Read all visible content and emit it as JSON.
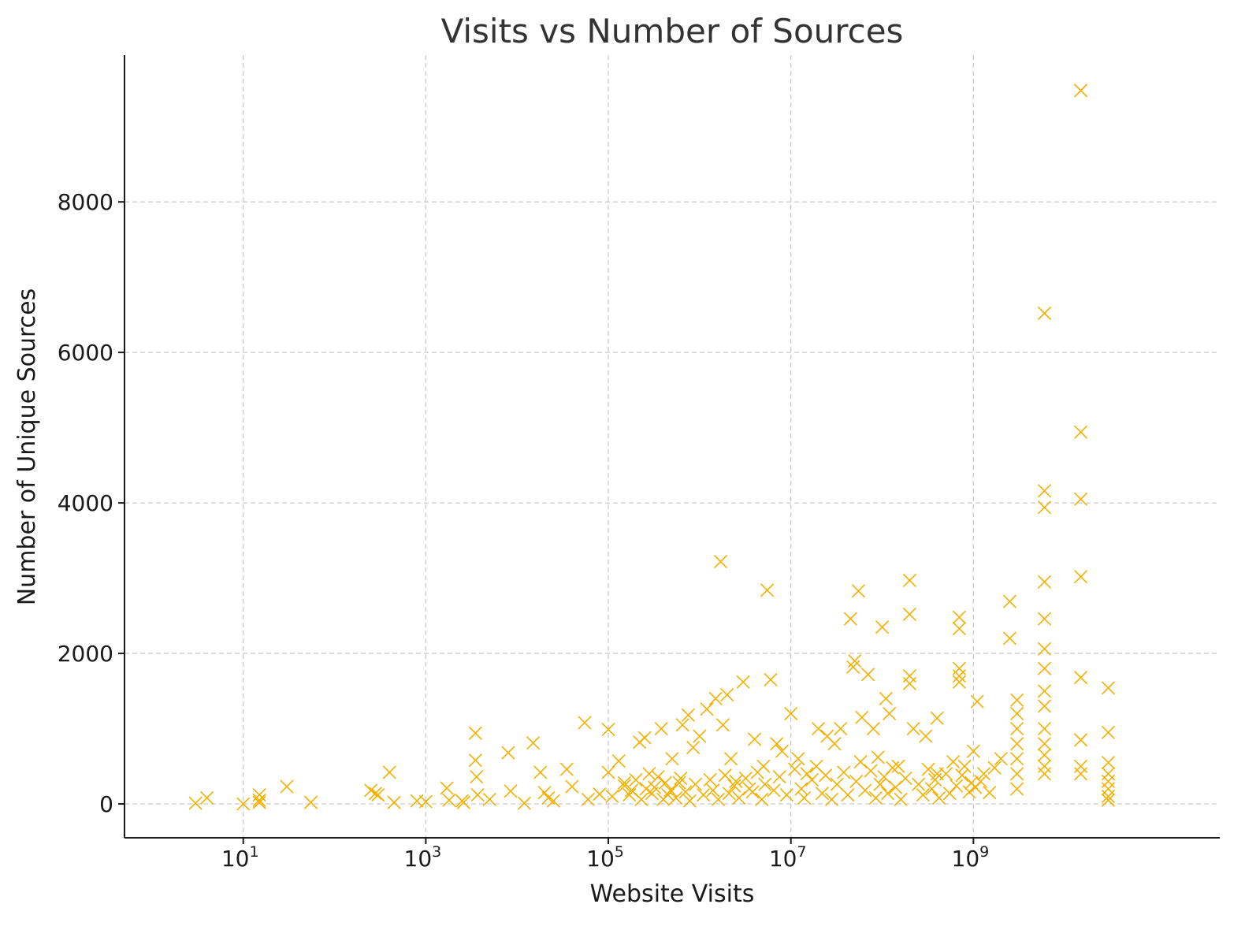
{
  "chart_data": {
    "type": "scatter",
    "title": "Visits vs Number of Sources",
    "xlabel": "Website Visits",
    "ylabel": "Number of Unique Sources",
    "x_scale": "log",
    "xlim": [
      0.5,
      500000000000
    ],
    "ylim": [
      -450,
      9950
    ],
    "x_ticks": [
      {
        "value": 10,
        "base": "10",
        "exp": "1"
      },
      {
        "value": 1000,
        "base": "10",
        "exp": "3"
      },
      {
        "value": 100000,
        "base": "10",
        "exp": "5"
      },
      {
        "value": 10000000,
        "base": "10",
        "exp": "7"
      },
      {
        "value": 1000000000,
        "base": "10",
        "exp": "9"
      }
    ],
    "y_ticks": [
      0,
      2000,
      4000,
      6000,
      8000
    ],
    "grid": true,
    "marker": "x",
    "color": "#f5b000",
    "points": [
      [
        3,
        10
      ],
      [
        4,
        80
      ],
      [
        10,
        0
      ],
      [
        15,
        50
      ],
      [
        15,
        120
      ],
      [
        15,
        20
      ],
      [
        30,
        230
      ],
      [
        55,
        20
      ],
      [
        250,
        180
      ],
      [
        280,
        140
      ],
      [
        300,
        120
      ],
      [
        400,
        420
      ],
      [
        450,
        20
      ],
      [
        800,
        40
      ],
      [
        1000,
        30
      ],
      [
        1700,
        210
      ],
      [
        1800,
        50
      ],
      [
        2500,
        40
      ],
      [
        2600,
        20
      ],
      [
        3500,
        940
      ],
      [
        3500,
        580
      ],
      [
        3600,
        360
      ],
      [
        3700,
        120
      ],
      [
        5000,
        60
      ],
      [
        8000,
        680
      ],
      [
        8500,
        170
      ],
      [
        12000,
        10
      ],
      [
        15000,
        810
      ],
      [
        18000,
        420
      ],
      [
        20000,
        150
      ],
      [
        22000,
        80
      ],
      [
        25000,
        40
      ],
      [
        35000,
        460
      ],
      [
        40000,
        230
      ],
      [
        55000,
        1080
      ],
      [
        60000,
        60
      ],
      [
        80000,
        130
      ],
      [
        100000,
        990
      ],
      [
        100000,
        420
      ],
      [
        110000,
        100
      ],
      [
        130000,
        570
      ],
      [
        150000,
        280
      ],
      [
        180000,
        180
      ],
      [
        220000,
        820
      ],
      [
        250000,
        880
      ],
      [
        280000,
        400
      ],
      [
        320000,
        220
      ],
      [
        380000,
        1000
      ],
      [
        450000,
        120
      ],
      [
        500000,
        600
      ],
      [
        600000,
        280
      ],
      [
        650000,
        1050
      ],
      [
        750000,
        1180
      ],
      [
        850000,
        750
      ],
      [
        1000000,
        900
      ],
      [
        1200000,
        1260
      ],
      [
        1500000,
        1400
      ],
      [
        1700000,
        3220
      ],
      [
        1800000,
        1050
      ],
      [
        2000000,
        1450
      ],
      [
        2200000,
        600
      ],
      [
        2500000,
        300
      ],
      [
        3000000,
        1620
      ],
      [
        3500000,
        200
      ],
      [
        4000000,
        860
      ],
      [
        5000000,
        500
      ],
      [
        5500000,
        2840
      ],
      [
        6000000,
        1650
      ],
      [
        7000000,
        800
      ],
      [
        8000000,
        700
      ],
      [
        10000000,
        1200
      ],
      [
        12000000,
        600
      ],
      [
        15000000,
        400
      ],
      [
        20000000,
        1000
      ],
      [
        25000000,
        900
      ],
      [
        30000000,
        800
      ],
      [
        35000000,
        1000
      ],
      [
        45000000,
        2460
      ],
      [
        48000000,
        1820
      ],
      [
        50000000,
        1900
      ],
      [
        55000000,
        2830
      ],
      [
        60000000,
        1150
      ],
      [
        70000000,
        1720
      ],
      [
        80000000,
        1000
      ],
      [
        100000000,
        2350
      ],
      [
        110000000,
        1400
      ],
      [
        120000000,
        1200
      ],
      [
        150000000,
        500
      ],
      [
        200000000,
        2970
      ],
      [
        200000000,
        2520
      ],
      [
        200000000,
        1700
      ],
      [
        200000000,
        1600
      ],
      [
        220000000,
        1000
      ],
      [
        300000000,
        900
      ],
      [
        400000000,
        1140
      ],
      [
        400000000,
        400
      ],
      [
        600000000,
        560
      ],
      [
        700000000,
        2480
      ],
      [
        700000000,
        2330
      ],
      [
        700000000,
        1800
      ],
      [
        700000000,
        1700
      ],
      [
        700000000,
        1620
      ],
      [
        800000000,
        500
      ],
      [
        1000000000,
        700
      ],
      [
        1100000000,
        1360
      ],
      [
        1200000000,
        300
      ],
      [
        1500000000,
        150
      ],
      [
        2000000000,
        600
      ],
      [
        2500000000,
        2690
      ],
      [
        2500000000,
        2200
      ],
      [
        3000000000,
        1380
      ],
      [
        3000000000,
        1200
      ],
      [
        3000000000,
        1000
      ],
      [
        3000000000,
        800
      ],
      [
        3000000000,
        600
      ],
      [
        3000000000,
        400
      ],
      [
        3000000000,
        200
      ],
      [
        6000000000,
        6520
      ],
      [
        6000000000,
        4160
      ],
      [
        6000000000,
        3940
      ],
      [
        6000000000,
        2950
      ],
      [
        6000000000,
        2460
      ],
      [
        6000000000,
        2060
      ],
      [
        6000000000,
        1800
      ],
      [
        6000000000,
        1500
      ],
      [
        6000000000,
        1300
      ],
      [
        6000000000,
        1000
      ],
      [
        6000000000,
        800
      ],
      [
        6000000000,
        650
      ],
      [
        6000000000,
        500
      ],
      [
        6000000000,
        400
      ],
      [
        15000000000,
        9480
      ],
      [
        15000000000,
        4940
      ],
      [
        15000000000,
        4050
      ],
      [
        15000000000,
        3020
      ],
      [
        15000000000,
        1680
      ],
      [
        15000000000,
        850
      ],
      [
        15000000000,
        500
      ],
      [
        15000000000,
        400
      ],
      [
        30000000000,
        1540
      ],
      [
        30000000000,
        950
      ],
      [
        30000000000,
        550
      ],
      [
        30000000000,
        400
      ],
      [
        30000000000,
        300
      ],
      [
        30000000000,
        200
      ],
      [
        30000000000,
        100
      ],
      [
        30000000000,
        50
      ],
      [
        150000,
        240
      ],
      [
        170000,
        120
      ],
      [
        200000,
        320
      ],
      [
        230000,
        60
      ],
      [
        260000,
        200
      ],
      [
        300000,
        140
      ],
      [
        350000,
        360
      ],
      [
        400000,
        60
      ],
      [
        420000,
        280
      ],
      [
        480000,
        180
      ],
      [
        550000,
        80
      ],
      [
        620000,
        340
      ],
      [
        700000,
        160
      ],
      [
        780000,
        40
      ],
      [
        900000,
        260
      ],
      [
        1100000,
        120
      ],
      [
        1300000,
        320
      ],
      [
        1400000,
        180
      ],
      [
        1600000,
        60
      ],
      [
        1900000,
        380
      ],
      [
        2100000,
        140
      ],
      [
        2400000,
        240
      ],
      [
        2700000,
        80
      ],
      [
        3200000,
        340
      ],
      [
        3800000,
        160
      ],
      [
        4300000,
        420
      ],
      [
        4800000,
        60
      ],
      [
        5200000,
        260
      ],
      [
        6500000,
        180
      ],
      [
        7500000,
        360
      ],
      [
        9000000,
        120
      ],
      [
        11000000,
        460
      ],
      [
        13000000,
        200
      ],
      [
        14000000,
        80
      ],
      [
        17000000,
        320
      ],
      [
        19000000,
        500
      ],
      [
        22000000,
        140
      ],
      [
        24000000,
        380
      ],
      [
        28000000,
        60
      ],
      [
        32000000,
        260
      ],
      [
        38000000,
        420
      ],
      [
        42000000,
        120
      ],
      [
        52000000,
        300
      ],
      [
        58000000,
        560
      ],
      [
        65000000,
        180
      ],
      [
        75000000,
        440
      ],
      [
        85000000,
        80
      ],
      [
        90000000,
        620
      ],
      [
        95000000,
        260
      ],
      [
        105000000,
        360
      ],
      [
        115000000,
        140
      ],
      [
        130000000,
        480
      ],
      [
        140000000,
        220
      ],
      [
        160000000,
        60
      ],
      [
        180000000,
        340
      ],
      [
        250000000,
        260
      ],
      [
        280000000,
        120
      ],
      [
        320000000,
        460
      ],
      [
        350000000,
        200
      ],
      [
        380000000,
        320
      ],
      [
        420000000,
        80
      ],
      [
        500000000,
        400
      ],
      [
        550000000,
        140
      ],
      [
        650000000,
        240
      ],
      [
        750000000,
        380
      ],
      [
        900000000,
        160
      ],
      [
        950000000,
        280
      ],
      [
        1050000000,
        220
      ],
      [
        1300000000,
        400
      ],
      [
        1700000000,
        480
      ]
    ]
  }
}
